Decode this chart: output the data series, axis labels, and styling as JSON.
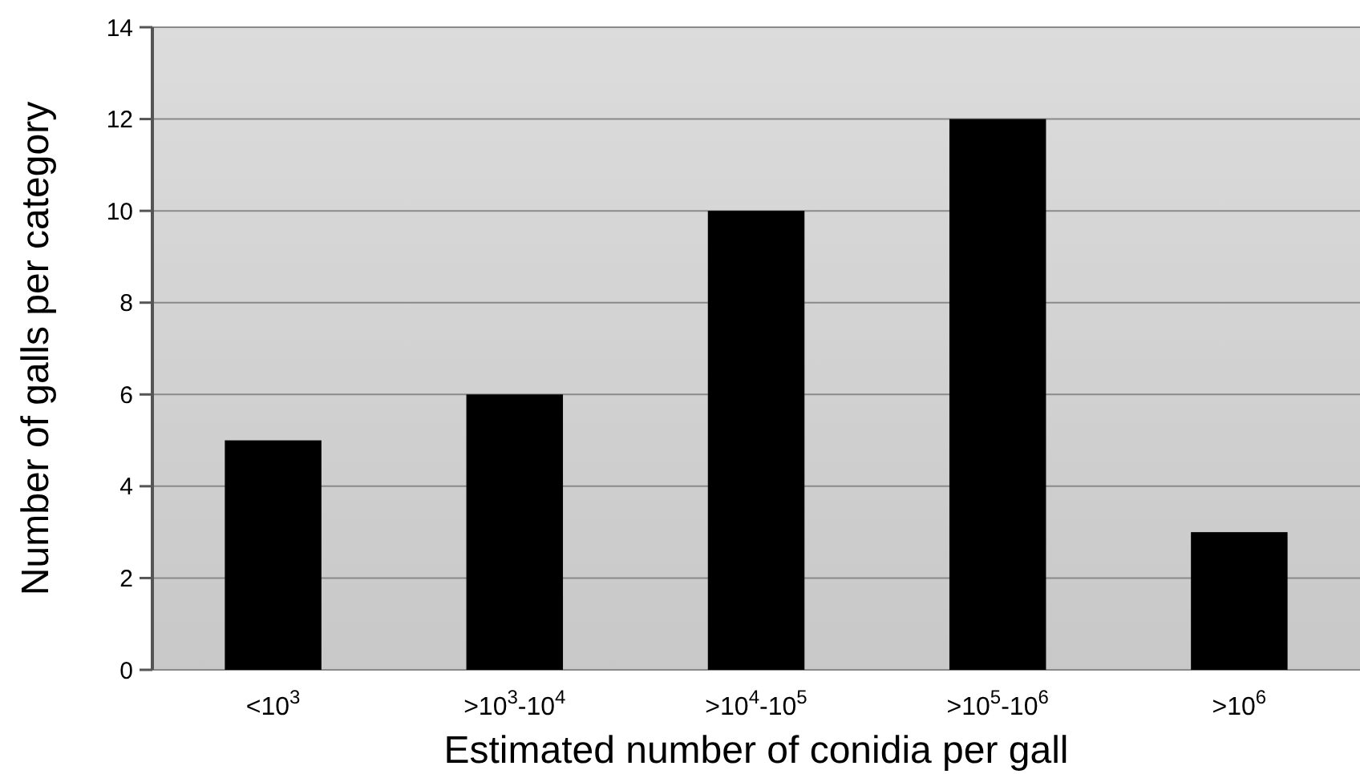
{
  "chart_data": {
    "type": "bar",
    "xlabel": "Estimated number of conidia per gall",
    "ylabel": "Number of galls per category",
    "categories": [
      "<10$^{3}$",
      ">10$^{3}$-10$^{4}$",
      ">10$^{4}$-10$^{5}$",
      ">10$^{5}$-10$^{6}$",
      ">10$^{6}$"
    ],
    "values": [
      5,
      6,
      10,
      12,
      3
    ],
    "color": "#000000",
    "ylim": [
      0,
      14
    ],
    "yticks": [
      0,
      2,
      4,
      6,
      8,
      10,
      12,
      14
    ],
    "grid": "y"
  }
}
